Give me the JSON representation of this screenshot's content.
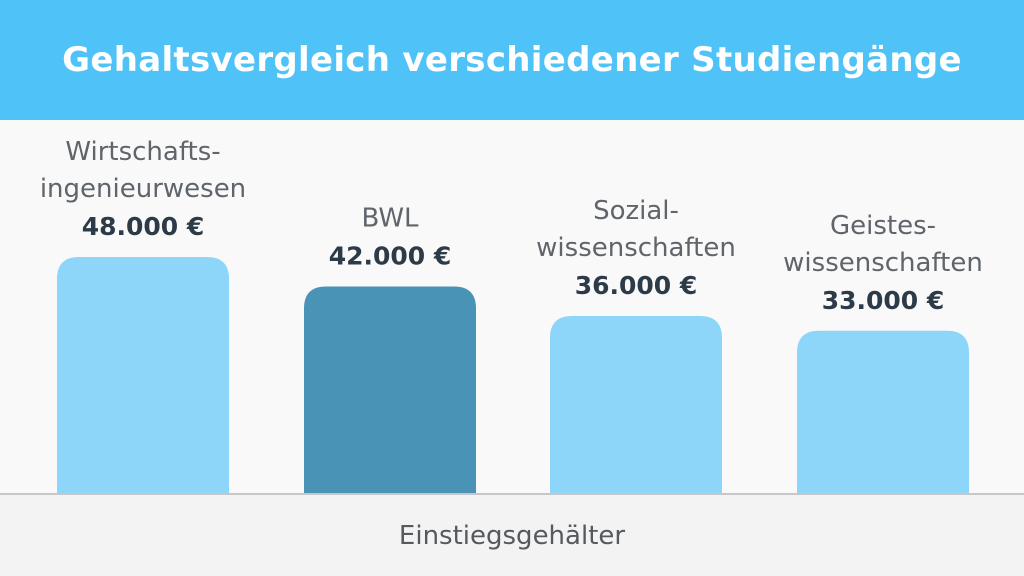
{
  "header": {
    "title": "Gehaltsvergleich verschiedener Studiengänge"
  },
  "chart_data": {
    "type": "bar",
    "title": "Gehaltsvergleich verschiedener Studiengänge",
    "xlabel": "Einstiegsgehälter",
    "ylabel": "",
    "categories": [
      [
        "Wirtschafts-",
        "ingenieurwesen"
      ],
      [
        "BWL"
      ],
      [
        "Sozial-",
        "wissenschaften"
      ],
      [
        "Geistes-",
        "wissenschaften"
      ]
    ],
    "values": [
      48000,
      42000,
      36000,
      33000
    ],
    "value_labels": [
      "48.000 €",
      "42.000 €",
      "36.000 €",
      "33.000 €"
    ],
    "bar_colors": [
      "#8dd6f9",
      "#4893b6",
      "#8dd6f9",
      "#8dd6f9"
    ],
    "label_color": "#5f656b",
    "value_color": "#2d3a48",
    "ylim": [
      0,
      48000
    ],
    "grid": false,
    "legend": "none"
  }
}
